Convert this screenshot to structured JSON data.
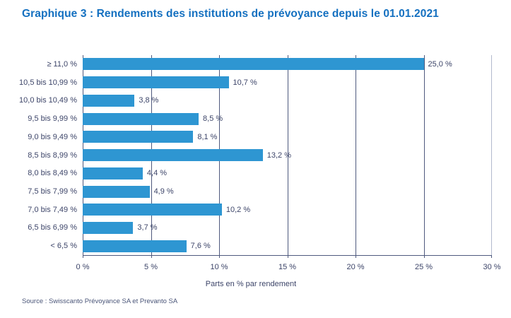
{
  "page": {
    "source": "Source : Swisscanto Prévoyance SA et Prevanto SA"
  },
  "chart_data": {
    "type": "bar",
    "orientation": "horizontal",
    "title": "Graphique 3 : Rendements des institutions de prévoyance depuis le 01.01.2021",
    "categories": [
      "≥ 11,0 %",
      "10,5 bis 10,99 %",
      "10,0 bis 10,49 %",
      "9,5 bis 9,99 %",
      "9,0 bis 9,49 %",
      "8,5 bis 8,99 %",
      "8,0 bis 8,49 %",
      "7,5 bis 7,99 %",
      "7,0 bis 7,49 %",
      "6,5 bis 6,99 %",
      "< 6,5 %"
    ],
    "values": [
      25.0,
      10.7,
      3.8,
      8.5,
      8.1,
      13.2,
      4.4,
      4.9,
      10.2,
      3.7,
      7.6
    ],
    "value_labels": [
      "25,0 %",
      "10,7 %",
      "3,8 %",
      "8,5 %",
      "8,1 %",
      "13,2 %",
      "4,4 %",
      "4,9 %",
      "10,2 %",
      "3,7 %",
      "7,6 %"
    ],
    "xlabel": "Parts en % par rendement",
    "x_ticks": [
      "0 %",
      "5 %",
      "10 %",
      "15 %",
      "20 %",
      "25 %",
      "30 %"
    ],
    "xlim": [
      0,
      30
    ],
    "grid": true,
    "legend_position": "none",
    "bar_color": "#2e96d2",
    "title_color": "#1470c0",
    "text_color": "#3d4569",
    "gridline_color": "#4f5a7e"
  }
}
